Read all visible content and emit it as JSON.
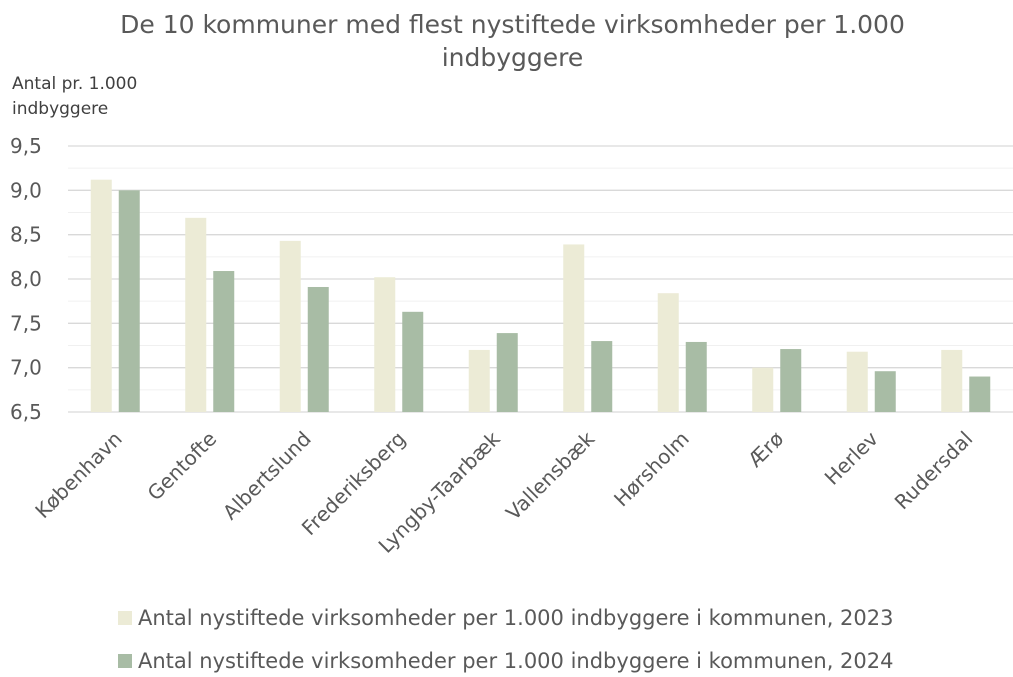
{
  "chart_data": {
    "type": "bar",
    "title": "De 10 kommuner med flest nystiftede virksomheder per 1.000 indbyggere",
    "y_axis_label": "Antal pr. 1.000 indbyggere",
    "categories": [
      "København",
      "Gentofte",
      "Albertslund",
      "Frederiksberg",
      "Lyngby-Taarbæk",
      "Vallensbæk",
      "Hørsholm",
      "Ærø",
      "Herlev",
      "Rudersdal"
    ],
    "series": [
      {
        "name": "Antal nystiftede virksomheder per 1.000 indbyggere i kommunen, 2023",
        "color": "#ecebd6",
        "values": [
          9.12,
          8.69,
          8.43,
          8.02,
          7.2,
          8.39,
          7.84,
          7.0,
          7.18,
          7.2
        ]
      },
      {
        "name": "Antal nystiftede virksomheder per 1.000 indbyggere i kommunen, 2024",
        "color": "#a8bca5",
        "values": [
          9.0,
          8.09,
          7.91,
          7.63,
          7.39,
          7.3,
          7.29,
          7.21,
          6.96,
          6.9
        ]
      }
    ],
    "ylim": [
      6.5,
      9.5
    ],
    "yticks": [
      {
        "value": 6.5,
        "label": "6,5"
      },
      {
        "value": 7,
        "label": "7,0"
      },
      {
        "value": 7.5,
        "label": "7,5"
      },
      {
        "value": 8,
        "label": "8,0"
      },
      {
        "value": 8.5,
        "label": "8,5"
      },
      {
        "value": 9,
        "label": "9,0"
      },
      {
        "value": 9.5,
        "label": "9,5"
      }
    ],
    "minor_yticks": [
      6.75,
      7.25,
      7.75,
      8.25,
      8.75,
      9.25
    ],
    "grid": true,
    "legend": "bottom"
  }
}
